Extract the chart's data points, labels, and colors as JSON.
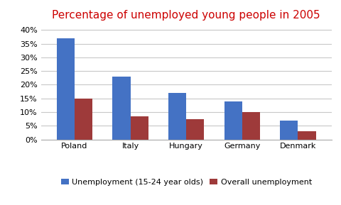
{
  "title": "Percentage of unemployed young people in 2005",
  "title_color": "#CC0000",
  "categories": [
    "Poland",
    "Italy",
    "Hungary",
    "Germany",
    "Denmark"
  ],
  "series": [
    {
      "label": "Unemployment (15-24 year olds)",
      "values": [
        37,
        23,
        17,
        14,
        7
      ],
      "color": "#4472C4"
    },
    {
      "label": "Overall unemployment",
      "values": [
        15,
        8.5,
        7.5,
        10,
        3
      ],
      "color": "#9E3A3A"
    }
  ],
  "ylim": [
    0,
    42
  ],
  "yticks": [
    0,
    5,
    10,
    15,
    20,
    25,
    30,
    35,
    40
  ],
  "ytick_labels": [
    "0%",
    "5%",
    "10%",
    "15%",
    "20%",
    "25%",
    "30%",
    "35%",
    "40%"
  ],
  "background_color": "#FFFFFF",
  "grid_color": "#C8C8C8",
  "bar_width": 0.32,
  "legend_ncol": 2,
  "title_fontsize": 11,
  "tick_fontsize": 8,
  "legend_fontsize": 8
}
